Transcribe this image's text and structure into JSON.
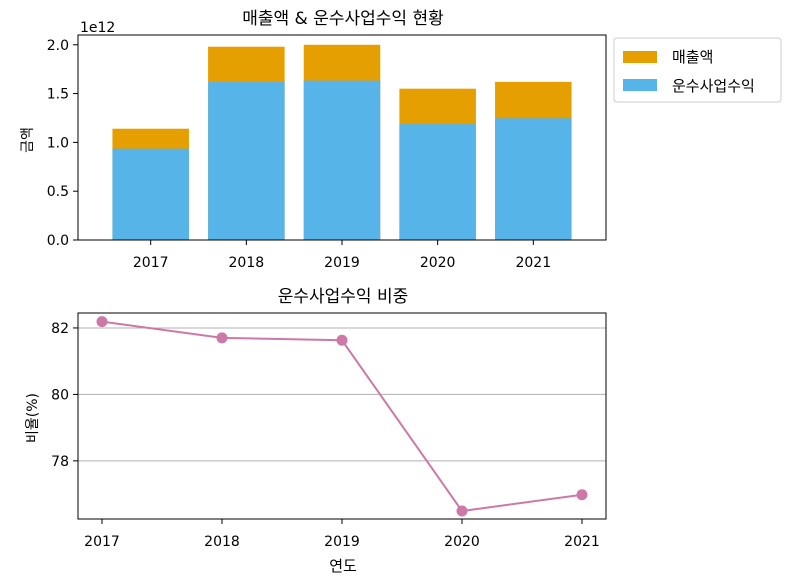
{
  "chart_data": [
    {
      "type": "bar",
      "stacked": "overlay",
      "title": "매출액 & 운수사업수익 현황",
      "xlabel": "",
      "ylabel": "금액",
      "y_offset_label": "1e12",
      "categories": [
        "2017",
        "2018",
        "2019",
        "2020",
        "2021"
      ],
      "series": [
        {
          "name": "매출액",
          "color": "#E69F00",
          "values": [
            1.14,
            1.98,
            2.0,
            1.55,
            1.62
          ]
        },
        {
          "name": "운수사업수익",
          "color": "#56B4E9",
          "values": [
            0.936,
            1.618,
            1.633,
            1.187,
            1.247
          ]
        }
      ],
      "ylim": [
        0,
        2.1
      ],
      "yticks": [
        "0.0",
        "0.5",
        "1.0",
        "1.5",
        "2.0"
      ],
      "ytick_values": [
        0,
        0.5,
        1.0,
        1.5,
        2.0
      ],
      "grid": false,
      "legend": "outside-top-right"
    },
    {
      "type": "line",
      "title": "운수사업수익 비중",
      "xlabel": "연도",
      "ylabel": "비율(%)",
      "x": [
        "2017",
        "2018",
        "2019",
        "2020",
        "2021"
      ],
      "series": [
        {
          "name": "운수사업수익 비중",
          "color": "#CC79A7",
          "values": [
            82.19,
            81.7,
            81.63,
            76.49,
            76.98
          ]
        }
      ],
      "ylim": [
        76.25,
        82.45
      ],
      "yticks": [
        "78",
        "80",
        "82"
      ],
      "ytick_values": [
        78,
        80,
        82
      ],
      "grid": "y"
    }
  ]
}
